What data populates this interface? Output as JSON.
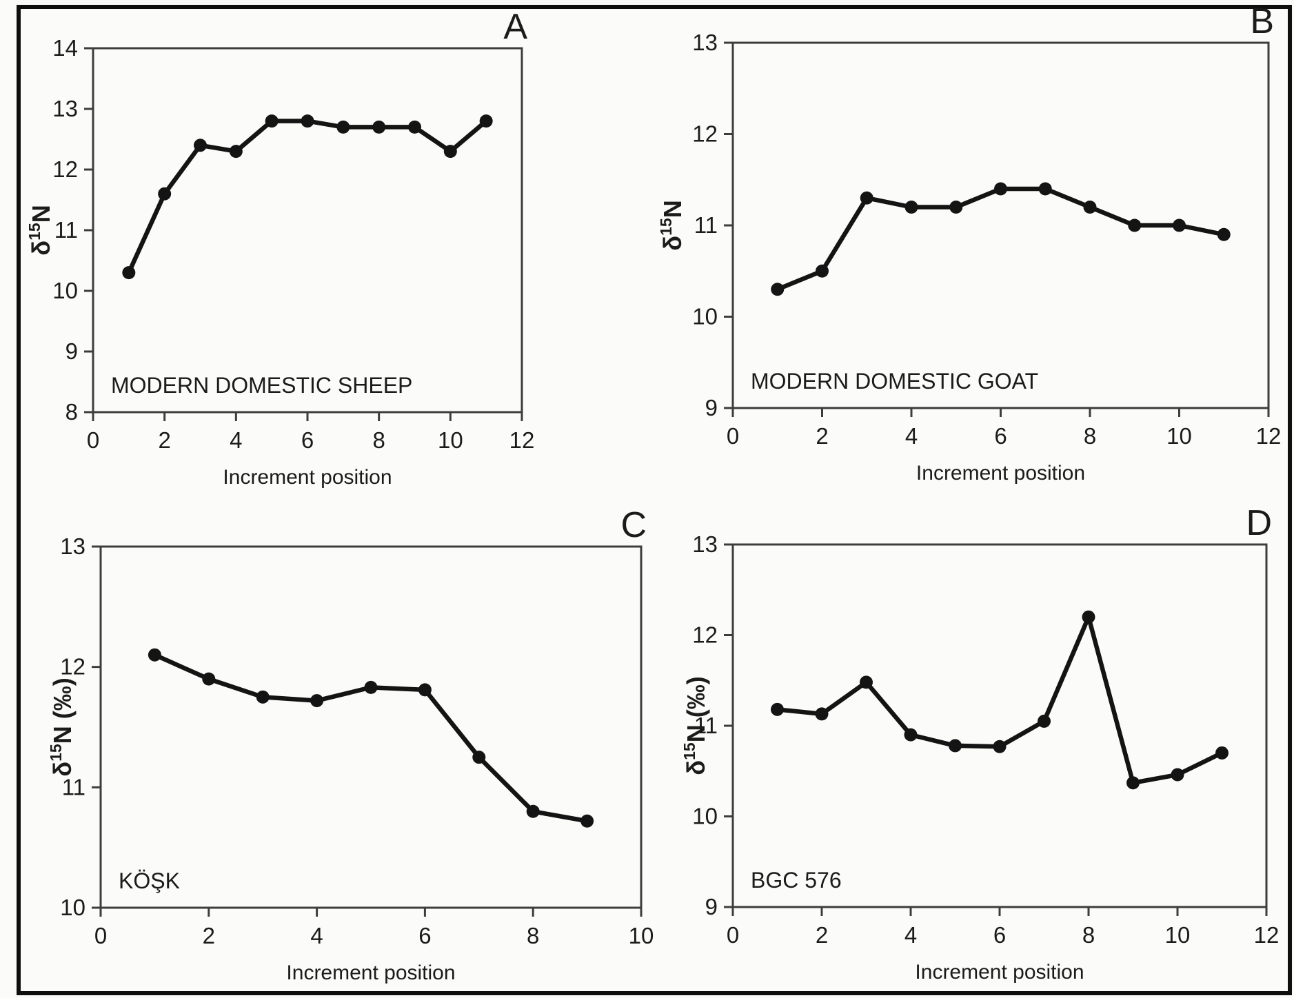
{
  "figure": {
    "description": "Four-panel line plots of nitrogen isotope values by tooth increment position",
    "shared_xlabel": "Increment position"
  },
  "colors": {
    "background": "#fbfbfa",
    "ink": "#1b1b1b",
    "frame": "#3d3d3d",
    "series": "#141414",
    "border": "#0f0f0f"
  },
  "chart_data": [
    {
      "type": "line",
      "panel_letter": "A",
      "annotation": "MODERN DOMESTIC SHEEP",
      "ylabel": {
        "base": "δ",
        "sup": "15",
        "rest": "N"
      },
      "xlabel": "Increment position",
      "x": [
        1,
        2,
        3,
        4,
        5,
        6,
        7,
        8,
        9,
        10,
        11
      ],
      "y": [
        10.3,
        11.6,
        12.4,
        12.3,
        12.8,
        12.8,
        12.7,
        12.7,
        12.7,
        12.3,
        12.8
      ],
      "xlim": [
        0,
        12
      ],
      "ylim": [
        8,
        14
      ],
      "xticks": [
        0,
        2,
        4,
        6,
        8,
        10,
        12
      ],
      "yticks": [
        8,
        9,
        10,
        11,
        12,
        13,
        14
      ],
      "grid": false,
      "legend": null
    },
    {
      "type": "line",
      "panel_letter": "B",
      "annotation": "MODERN DOMESTIC GOAT",
      "ylabel": {
        "base": "δ",
        "sup": "15",
        "rest": "N"
      },
      "xlabel": "Increment position",
      "x": [
        1,
        2,
        3,
        4,
        5,
        6,
        7,
        8,
        9,
        10,
        11
      ],
      "y": [
        10.3,
        10.5,
        11.3,
        11.2,
        11.2,
        11.4,
        11.4,
        11.2,
        11.0,
        11.0,
        10.9
      ],
      "xlim": [
        0,
        12
      ],
      "ylim": [
        9,
        13
      ],
      "xticks": [
        0,
        2,
        4,
        6,
        8,
        10,
        12
      ],
      "yticks": [
        9,
        10,
        11,
        12,
        13
      ],
      "grid": false,
      "legend": null
    },
    {
      "type": "line",
      "panel_letter": "C",
      "annotation": "KÖŞK",
      "ylabel": {
        "base": "δ",
        "sup": "15",
        "rest": "N (‰)"
      },
      "xlabel": "Increment position",
      "x": [
        1,
        2,
        3,
        4,
        5,
        6,
        7,
        8,
        9
      ],
      "y": [
        12.1,
        11.9,
        11.75,
        11.72,
        11.83,
        11.81,
        11.25,
        10.8,
        10.72
      ],
      "xlim": [
        0,
        10
      ],
      "ylim": [
        10,
        13
      ],
      "xticks": [
        0,
        2,
        4,
        6,
        8,
        10
      ],
      "yticks": [
        10,
        11,
        12,
        13
      ],
      "grid": false,
      "legend": null
    },
    {
      "type": "line",
      "panel_letter": "D",
      "annotation": "BGC 576",
      "ylabel": {
        "base": "δ",
        "sup": "15",
        "rest": "N (‰)"
      },
      "xlabel": "Increment position",
      "x": [
        1,
        2,
        3,
        4,
        5,
        6,
        7,
        8,
        9,
        10,
        11
      ],
      "y": [
        11.18,
        11.13,
        11.48,
        10.9,
        10.78,
        10.77,
        11.05,
        12.2,
        10.37,
        10.46,
        10.7
      ],
      "xlim": [
        0,
        12
      ],
      "ylim": [
        9,
        13
      ],
      "xticks": [
        0,
        2,
        4,
        6,
        8,
        10,
        12
      ],
      "yticks": [
        9,
        10,
        11,
        12,
        13
      ],
      "grid": false,
      "legend": null
    }
  ]
}
